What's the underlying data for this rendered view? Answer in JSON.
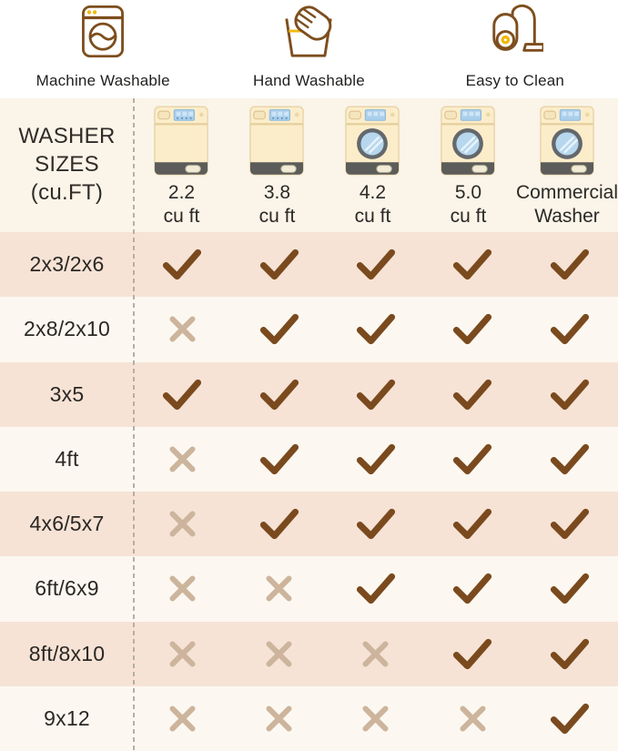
{
  "top_features": [
    {
      "label": "Machine Washable",
      "icon": "washing-machine-icon"
    },
    {
      "label": "Hand Washable",
      "icon": "hand-wash-icon"
    },
    {
      "label": "Easy to Clean",
      "icon": "vacuum-icon"
    }
  ],
  "table": {
    "header_lines": [
      "WASHER",
      "SIZES",
      "(cu.FT)"
    ],
    "columns": [
      {
        "size": "2.2",
        "unit": "cu ft",
        "washer_type": "top-load"
      },
      {
        "size": "3.8",
        "unit": "cu ft",
        "washer_type": "top-load"
      },
      {
        "size": "4.2",
        "unit": "cu ft",
        "washer_type": "front-load"
      },
      {
        "size": "5.0",
        "unit": "cu ft",
        "washer_type": "front-load"
      },
      {
        "size": "Commercial",
        "unit": "Washer",
        "washer_type": "front-load"
      }
    ],
    "rows": [
      {
        "size": "2x3/2x6",
        "values": [
          true,
          true,
          true,
          true,
          true
        ]
      },
      {
        "size": "2x8/2x10",
        "values": [
          false,
          true,
          true,
          true,
          true
        ]
      },
      {
        "size": "3x5",
        "values": [
          true,
          true,
          true,
          true,
          true
        ]
      },
      {
        "size": "4ft",
        "values": [
          false,
          true,
          true,
          true,
          true
        ]
      },
      {
        "size": "4x6/5x7",
        "values": [
          false,
          true,
          true,
          true,
          true
        ]
      },
      {
        "size": "6ft/6x9",
        "values": [
          false,
          false,
          true,
          true,
          true
        ]
      },
      {
        "size": "8ft/8x10",
        "values": [
          false,
          false,
          false,
          true,
          true
        ]
      },
      {
        "size": "9x12",
        "values": [
          false,
          false,
          false,
          false,
          true
        ]
      }
    ]
  },
  "colors": {
    "check": "#7a4a1e",
    "cross": "#cdb49c",
    "brand_brown": "#7d4e1d",
    "accent_yellow": "#f0b90d",
    "row_peach": "#f6e3d6",
    "row_light": "#fcf8f1",
    "header_cream": "#faf4e9"
  },
  "chart_data": {
    "type": "table",
    "title": "Washer size compatibility by rug size",
    "column_headers": [
      "2.2 cu ft",
      "3.8 cu ft",
      "4.2 cu ft",
      "5.0 cu ft",
      "Commercial Washer"
    ],
    "row_headers": [
      "2x3/2x6",
      "2x8/2x10",
      "3x5",
      "4ft",
      "4x6/5x7",
      "6ft/6x9",
      "8ft/8x10",
      "9x12"
    ],
    "corner_header": "WASHER SIZES (cu.FT)",
    "values": [
      [
        "check",
        "check",
        "check",
        "check",
        "check"
      ],
      [
        "cross",
        "check",
        "check",
        "check",
        "check"
      ],
      [
        "check",
        "check",
        "check",
        "check",
        "check"
      ],
      [
        "cross",
        "check",
        "check",
        "check",
        "check"
      ],
      [
        "cross",
        "check",
        "check",
        "check",
        "check"
      ],
      [
        "cross",
        "cross",
        "check",
        "check",
        "check"
      ],
      [
        "cross",
        "cross",
        "cross",
        "check",
        "check"
      ],
      [
        "cross",
        "cross",
        "cross",
        "cross",
        "check"
      ]
    ],
    "badges": [
      "Machine Washable",
      "Hand Washable",
      "Easy to Clean"
    ],
    "legend_position": "none",
    "grid": "alternating-row-shading"
  }
}
